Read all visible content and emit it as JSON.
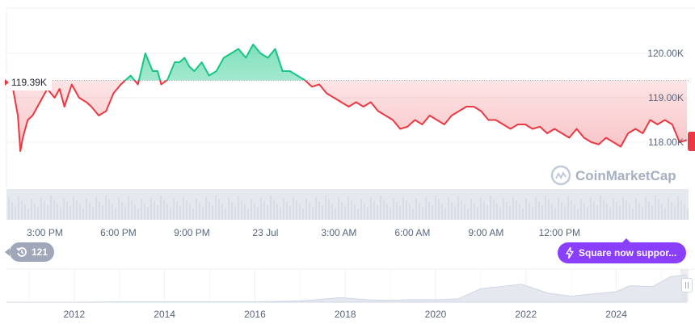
{
  "chart_data": [
    {
      "type": "line",
      "title": "",
      "xlabel": "",
      "ylabel": "",
      "x_ticks": [
        "3:00 PM",
        "6:00 PM",
        "9:00 PM",
        "23 Jul",
        "3:00 AM",
        "6:00 AM",
        "9:00 AM",
        "12:00 PM"
      ],
      "y_ticks": [
        "120.00K",
        "119.00K",
        "118.00K"
      ],
      "ylim": [
        117.6,
        120.9
      ],
      "reference_value": 119.39,
      "reference_label": "119.39K",
      "x_hours": [
        0,
        0.2,
        0.4,
        0.5,
        0.6,
        0.8,
        1.0,
        1.3,
        1.6,
        1.9,
        2.1,
        2.3,
        2.6,
        2.9,
        3.2,
        3.4,
        3.7,
        4.0,
        4.3,
        4.6,
        5.0,
        5.3,
        5.6,
        5.9,
        6.1,
        6.25,
        6.5,
        6.8,
        7.0,
        7.2,
        7.4,
        7.6,
        7.9,
        8.2,
        8.5,
        8.8,
        9.1,
        9.4,
        9.7,
        10.0,
        10.3,
        10.6,
        10.9,
        11.2,
        11.5,
        11.8,
        12.1,
        12.4,
        12.7,
        13.0,
        13.3,
        13.6,
        13.9,
        14.2,
        14.5,
        14.8,
        15.1,
        15.4,
        15.7,
        16.0,
        16.3,
        16.6,
        16.9,
        17.2,
        17.5,
        17.8,
        18.1,
        18.4,
        18.7,
        19.0,
        19.3,
        19.6,
        19.9,
        20.2,
        20.5,
        20.8,
        21.1,
        21.4,
        21.7,
        22.0,
        22.3,
        22.6,
        22.9,
        23.2,
        23.5,
        23.8,
        24.1,
        24.4,
        24.7,
        25.0,
        25.3,
        25.6,
        25.9,
        26.2,
        26.5,
        26.8,
        27.1,
        27.4,
        27.7
      ],
      "series": [
        {
          "values": [
            119.39,
            119.2,
            118.6,
            117.8,
            118.1,
            118.5,
            118.6,
            118.9,
            119.2,
            119.0,
            119.2,
            118.8,
            119.3,
            119.0,
            118.9,
            118.8,
            118.6,
            118.7,
            119.1,
            119.3,
            119.5,
            119.3,
            120.0,
            119.6,
            119.6,
            119.3,
            119.4,
            119.8,
            119.8,
            119.9,
            119.7,
            119.6,
            119.8,
            119.5,
            119.6,
            119.9,
            120.0,
            120.1,
            119.9,
            120.2,
            120.0,
            119.9,
            120.1,
            119.6,
            119.6,
            119.5,
            119.4,
            119.25,
            119.3,
            119.1,
            119.0,
            118.9,
            118.8,
            118.9,
            118.8,
            118.9,
            118.7,
            118.6,
            118.5,
            118.3,
            118.35,
            118.5,
            118.4,
            118.6,
            118.5,
            118.4,
            118.6,
            118.7,
            118.8,
            118.8,
            118.7,
            118.5,
            118.5,
            118.4,
            118.3,
            118.4,
            118.4,
            118.3,
            118.35,
            118.2,
            118.3,
            118.2,
            118.1,
            118.3,
            118.1,
            118.0,
            117.95,
            118.1,
            118.0,
            117.9,
            118.2,
            118.3,
            118.2,
            118.5,
            118.4,
            118.5,
            118.4,
            118.0,
            118.05
          ]
        }
      ]
    },
    {
      "type": "area",
      "title": "",
      "x_ticks": [
        "2012",
        "2014",
        "2016",
        "2018",
        "2020",
        "2022",
        "2024"
      ],
      "x_years": [
        2010.5,
        2012,
        2013,
        2014,
        2015,
        2016,
        2017,
        2017.9,
        2018.5,
        2019,
        2019.5,
        2020,
        2020.5,
        2021,
        2021.3,
        2021.9,
        2022.5,
        2023,
        2023.5,
        2024,
        2024.3,
        2024.8,
        2025.2,
        2025.55
      ],
      "values": [
        0,
        0,
        0.01,
        0.01,
        0.01,
        0.01,
        0.04,
        0.15,
        0.08,
        0.06,
        0.09,
        0.08,
        0.11,
        0.45,
        0.5,
        0.6,
        0.3,
        0.2,
        0.28,
        0.35,
        0.55,
        0.52,
        0.85,
        0.92
      ],
      "xlim": [
        2010.5,
        2025.6
      ],
      "ylim": [
        0,
        1
      ]
    }
  ],
  "colors": {
    "up": "#16c784",
    "down": "#ea3943",
    "up_fill": "#16c784",
    "down_fill": "#ea3943",
    "ref_line": "#a1a7bb"
  },
  "watermark": "CoinMarketCap",
  "history_badge": {
    "icon": "history-icon",
    "count": "121"
  },
  "announcement": {
    "icon": "lightning-icon",
    "text": "Square now suppor..."
  }
}
